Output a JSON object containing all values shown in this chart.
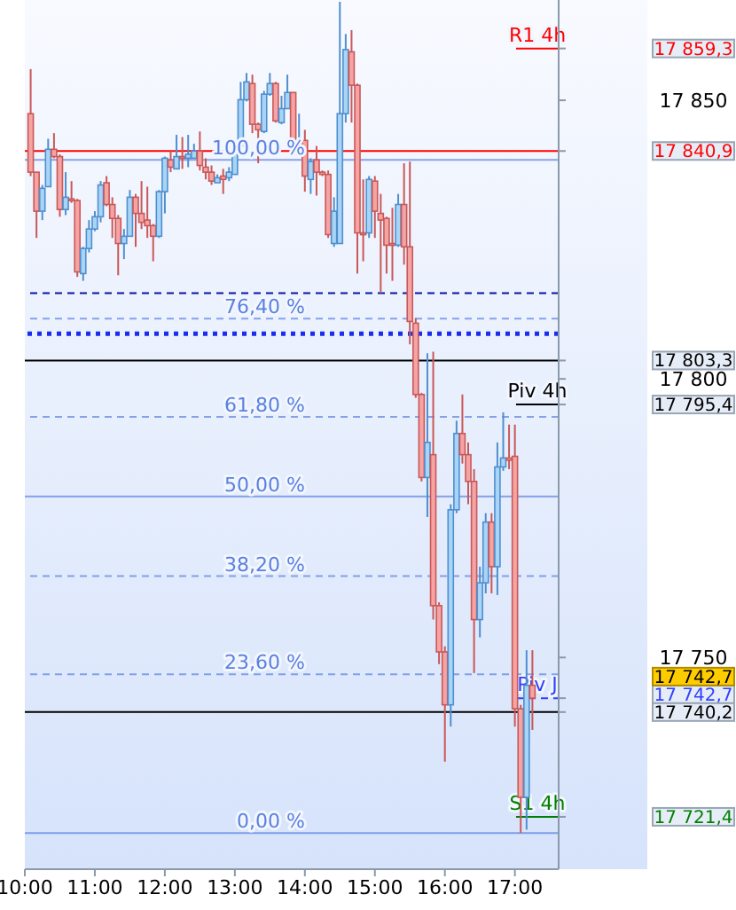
{
  "chart_data": {
    "type": "candlestick",
    "x": [
      10.0833,
      10.1667,
      10.25,
      10.3333,
      10.4167,
      10.5,
      10.5833,
      10.6667,
      10.75,
      10.8333,
      10.9167,
      11,
      11.0833,
      11.1667,
      11.25,
      11.3333,
      11.4167,
      11.5,
      11.5833,
      11.6667,
      11.75,
      11.8333,
      11.9167,
      12,
      12.0833,
      12.1667,
      12.25,
      12.3333,
      12.4167,
      12.5,
      12.5833,
      12.6667,
      12.75,
      12.8333,
      12.9167,
      13,
      13.0833,
      13.1667,
      13.25,
      13.3333,
      13.4167,
      13.5,
      13.5833,
      13.6667,
      13.75,
      13.8333,
      13.9167,
      14,
      14.0833,
      14.1667,
      14.25,
      14.3333,
      14.4167,
      14.5,
      14.5833,
      14.6667,
      14.75,
      14.8333,
      14.9167,
      15,
      15.0833,
      15.1667,
      15.25,
      15.3333,
      15.4167,
      15.5,
      15.5833,
      15.6667,
      15.75,
      15.8333,
      15.9167,
      16,
      16.0833,
      16.1667,
      16.25,
      16.3333,
      16.4167,
      16.5,
      16.5833,
      16.6667,
      16.75,
      16.8333,
      16.9167,
      17,
      17.0833,
      17.1667,
      17.25
    ],
    "ohlc": [
      [
        17847.6,
        17855.6,
        17836.4,
        17837.1
      ],
      [
        17837.1,
        17837.1,
        17825.3,
        17830.1
      ],
      [
        17830.1,
        17834.8,
        17828.5,
        17834.2
      ],
      [
        17834.5,
        17843.1,
        17834.5,
        17841.2
      ],
      [
        17841.2,
        17844.1,
        17839.6,
        17839.9
      ],
      [
        17839.9,
        17840.3,
        17829.1,
        17830.4
      ],
      [
        17830.4,
        17837.1,
        17829.4,
        17832.6
      ],
      [
        17832.3,
        17835.5,
        17831.6,
        17832.0
      ],
      [
        17832.0,
        17832.3,
        17818.3,
        17819.2
      ],
      [
        17818.9,
        17823.7,
        17817.6,
        17823.4
      ],
      [
        17823.4,
        17828.5,
        17822.7,
        17826.9
      ],
      [
        17826.9,
        17830.1,
        17826.5,
        17829.1
      ],
      [
        17829.1,
        17835.5,
        17828.1,
        17834.8
      ],
      [
        17835.2,
        17836.4,
        17831.0,
        17831.3
      ],
      [
        17831.3,
        17832.6,
        17825.3,
        17828.8
      ],
      [
        17828.8,
        17829.4,
        17818.6,
        17824.3
      ],
      [
        17824.3,
        17826.9,
        17821.5,
        17825.6
      ],
      [
        17825.6,
        17833.9,
        17825.6,
        17832.6
      ],
      [
        17832.6,
        17833.2,
        17823.7,
        17829.7
      ],
      [
        17829.7,
        17835.5,
        17826.9,
        17828.1
      ],
      [
        17828.5,
        17834.5,
        17825.3,
        17827.5
      ],
      [
        17827.5,
        17827.8,
        17821.1,
        17825.6
      ],
      [
        17825.6,
        17833.9,
        17825.3,
        17833.6
      ],
      [
        17833.6,
        17839.9,
        17829.7,
        17839.6
      ],
      [
        17839.3,
        17840.9,
        17837.1,
        17838.0
      ],
      [
        17837.7,
        17843.8,
        17837.7,
        17839.9
      ],
      [
        17839.9,
        17843.4,
        17837.7,
        17839.6
      ],
      [
        17839.6,
        17843.8,
        17838.0,
        17840.3
      ],
      [
        17839.6,
        17842.2,
        17839.6,
        17840.9
      ],
      [
        17840.9,
        17844.4,
        17837.4,
        17838.3
      ],
      [
        17838.0,
        17839.6,
        17835.8,
        17837.1
      ],
      [
        17837.1,
        17838.3,
        17834.8,
        17835.5
      ],
      [
        17835.2,
        17836.7,
        17835.2,
        17836.1
      ],
      [
        17836.4,
        17837.7,
        17833.2,
        17835.8
      ],
      [
        17836.1,
        17838.0,
        17835.5,
        17837.1
      ],
      [
        17836.7,
        17842.2,
        17836.7,
        17841.8
      ],
      [
        17841.8,
        17853.3,
        17841.5,
        17850.1
      ],
      [
        17850.1,
        17854.9,
        17849.8,
        17853.3
      ],
      [
        17853.0,
        17854.6,
        17844.1,
        17845.7
      ],
      [
        17845.7,
        17846.0,
        17838.7,
        17844.7
      ],
      [
        17844.4,
        17851.7,
        17844.1,
        17851.1
      ],
      [
        17851.1,
        17854.9,
        17850.8,
        17853.0
      ],
      [
        17853.0,
        17853.3,
        17846.0,
        17846.3
      ],
      [
        17846.0,
        17850.8,
        17845.7,
        17848.5
      ],
      [
        17848.5,
        17854.6,
        17848.5,
        17851.4
      ],
      [
        17851.4,
        17851.4,
        17841.2,
        17841.5
      ],
      [
        17841.5,
        17847.6,
        17841.2,
        17842.8
      ],
      [
        17842.8,
        17844.7,
        17833.6,
        17836.4
      ],
      [
        17835.8,
        17839.6,
        17833.2,
        17839.0
      ],
      [
        17839.3,
        17841.8,
        17832.9,
        17837.1
      ],
      [
        17837.1,
        17837.4,
        17836.4,
        17836.7
      ],
      [
        17836.7,
        17837.4,
        17825.3,
        17825.9
      ],
      [
        17824.3,
        17832.6,
        17823.7,
        17830.1
      ],
      [
        17824.3,
        17867.7,
        17824.3,
        17847.6
      ],
      [
        17847.6,
        17861.9,
        17846.0,
        17859.1
      ],
      [
        17858.7,
        17862.6,
        17846.0,
        17852.7
      ],
      [
        17852.7,
        17853.0,
        17818.9,
        17826.2
      ],
      [
        17826.2,
        17835.8,
        17821.1,
        17825.9
      ],
      [
        17826.2,
        17836.4,
        17825.3,
        17835.8
      ],
      [
        17835.5,
        17836.4,
        17825.3,
        17830.1
      ],
      [
        17829.7,
        17833.2,
        17815.4,
        17828.5
      ],
      [
        17828.8,
        17829.1,
        17818.9,
        17824.0
      ],
      [
        17824.3,
        17830.7,
        17817.6,
        17824.0
      ],
      [
        17824.0,
        17833.2,
        17823.7,
        17831.3
      ],
      [
        17831.3,
        17838.7,
        17820.5,
        17823.7
      ],
      [
        17823.7,
        17839.0,
        17806.2,
        17810.3
      ],
      [
        17810.0,
        17810.9,
        17796.6,
        17797.2
      ],
      [
        17797.2,
        17797.5,
        17781.6,
        17782.3
      ],
      [
        17782.3,
        17804.6,
        17775.2,
        17788.6
      ],
      [
        17786.4,
        17804.9,
        17756.8,
        17759.3
      ],
      [
        17759.3,
        17759.9,
        17748.8,
        17751.0
      ],
      [
        17751.0,
        17752.0,
        17731.3,
        17741.5
      ],
      [
        17741.5,
        17777.5,
        17737.6,
        17776.5
      ],
      [
        17776.5,
        17792.5,
        17775.9,
        17790.2
      ],
      [
        17790.2,
        17797.2,
        17784.8,
        17786.4
      ],
      [
        17786.4,
        17788.6,
        17777.5,
        17781.6
      ],
      [
        17781.6,
        17783.8,
        17747.2,
        17756.8
      ],
      [
        17756.8,
        17766.3,
        17753.6,
        17763.4
      ],
      [
        17763.4,
        17775.9,
        17761.5,
        17774.3
      ],
      [
        17774.3,
        17775.9,
        17761.5,
        17766.3
      ],
      [
        17766.3,
        17788.6,
        17761.2,
        17784.2
      ],
      [
        17784.2,
        17794.0,
        17783.5,
        17785.8
      ],
      [
        17785.8,
        17791.8,
        17783.8,
        17785.4
      ],
      [
        17786.1,
        17791.8,
        17737.6,
        17740.8
      ],
      [
        17740.8,
        17741.5,
        17718.5,
        17724.9
      ],
      [
        17724.9,
        17751.3,
        17719.1,
        17745.0
      ],
      [
        17745.0,
        17751.3,
        17737.0,
        17742.7
      ]
    ],
    "xlim": [
      10,
      17.625
    ],
    "xticks": [
      {
        "value": 10,
        "label": "10:00"
      },
      {
        "value": 11,
        "label": "11:00"
      },
      {
        "value": 12,
        "label": "12:00"
      },
      {
        "value": 13,
        "label": "13:00"
      },
      {
        "value": 14,
        "label": "14:00"
      },
      {
        "value": 15,
        "label": "15:00"
      },
      {
        "value": 16,
        "label": "16:00"
      },
      {
        "value": 17,
        "label": "17:00"
      }
    ],
    "ylim": [
      17712,
      17868
    ],
    "yticks": [
      {
        "value": 17750,
        "label": "17 750"
      },
      {
        "value": 17800,
        "label": "17 800"
      },
      {
        "value": 17850,
        "label": "17 850"
      },
      {
        "value": 17859.3,
        "label": "17 859,3"
      },
      {
        "value": 17840.9,
        "label": "17 840,9"
      },
      {
        "value": 17803.3,
        "label": "17 803,3"
      },
      {
        "value": 17795.4,
        "label": "17 795,4"
      },
      {
        "value": 17742.7,
        "label": "17 742,7"
      },
      {
        "value": 17740.2,
        "label": "17 740,2"
      },
      {
        "value": 17721.4,
        "label": "17 721,4"
      }
    ],
    "ref_lines": [
      {
        "axis": "y",
        "value": 17859.3,
        "label": "R1 4h",
        "color": "#ff0000"
      },
      {
        "axis": "y",
        "value": 17840.9,
        "color": "#ff0000"
      },
      {
        "axis": "y",
        "value": 17815.4,
        "color": "#0a14a0",
        "line_style": "dashed"
      },
      {
        "axis": "y",
        "value": 17808.1,
        "color": "#1a2cf0",
        "line_style": "dotted"
      },
      {
        "axis": "y",
        "value": 17803.3,
        "color": "#000000"
      },
      {
        "axis": "y",
        "value": 17795.4,
        "label": "Piv 4h",
        "color": "#000000"
      },
      {
        "axis": "y",
        "value": 17742.7,
        "label": "Piv J",
        "color": "#3040ff",
        "line_style": "dashed"
      },
      {
        "axis": "y",
        "value": 17740.2,
        "color": "#000000"
      },
      {
        "axis": "y",
        "value": 17721.4,
        "label": "S1 4h",
        "color": "#008000"
      },
      {
        "axis": "y",
        "value": 17839.3,
        "color": "#5b80e0"
      },
      {
        "axis": "y",
        "value": 17810.8,
        "color": "#5b80e0",
        "line_style": "dashed"
      },
      {
        "axis": "y",
        "value": 17793.2,
        "color": "#5b80e0",
        "line_style": "dashed"
      },
      {
        "axis": "y",
        "value": 17778.9,
        "color": "#5b80e0"
      },
      {
        "axis": "y",
        "value": 17764.6,
        "color": "#5b80e0",
        "line_style": "dashed"
      },
      {
        "axis": "y",
        "value": 17747.0,
        "color": "#5b80e0",
        "line_style": "dashed"
      },
      {
        "axis": "y",
        "value": 17718.5,
        "color": "#5b80e0"
      }
    ],
    "annotations": [
      "17 742,7",
      {
        "text": "100,00 %",
        "y": 17839.3
      },
      {
        "text": "76,40 %",
        "y": 17810.8
      },
      {
        "text": "61,80 %",
        "y": 17793.2
      },
      {
        "text": "50,00 %",
        "y": 17778.9
      },
      {
        "text": "38,20 %",
        "y": 17764.6
      },
      {
        "text": "23,60 %",
        "y": 17747.0
      },
      {
        "text": "0,00 %",
        "y": 17718.5
      }
    ]
  }
}
